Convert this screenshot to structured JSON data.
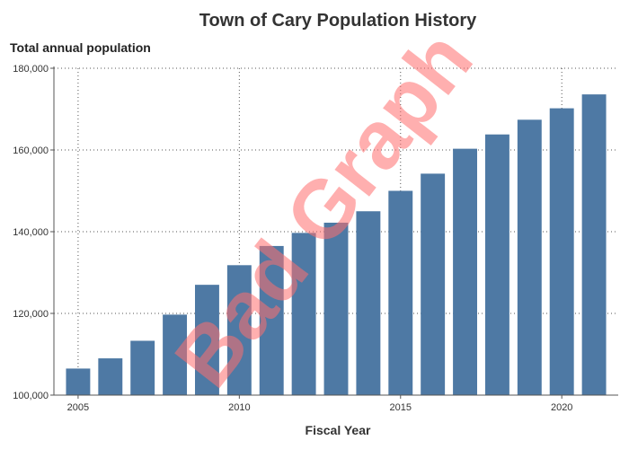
{
  "chart_data": {
    "type": "bar",
    "title": "Town of Cary Population History",
    "ylabel": "Total annual population",
    "xlabel": "Fiscal Year",
    "x": [
      2005,
      2006,
      2007,
      2008,
      2009,
      2010,
      2011,
      2012,
      2013,
      2014,
      2015,
      2016,
      2017,
      2018,
      2019,
      2020,
      2021
    ],
    "values": [
      106500,
      109000,
      113300,
      119700,
      127000,
      131800,
      136500,
      139700,
      142200,
      145000,
      150000,
      154200,
      160300,
      163800,
      167400,
      170200,
      173600
    ],
    "ylim": [
      100000,
      180000
    ],
    "xlim": [
      2004.25,
      2021.75
    ],
    "yticks": [
      100000,
      120000,
      140000,
      160000,
      180000
    ],
    "ytick_labels": [
      "100,000",
      "120,000",
      "140,000",
      "160,000",
      "180,000"
    ],
    "xticks": [
      2005,
      2010,
      2015,
      2020
    ],
    "xtick_labels": [
      "2005",
      "2010",
      "2015",
      "2020"
    ],
    "grid": true,
    "bar_color": "#4e79a4",
    "watermark": "Bad Graph",
    "watermark_color": "#ff6f6f"
  }
}
